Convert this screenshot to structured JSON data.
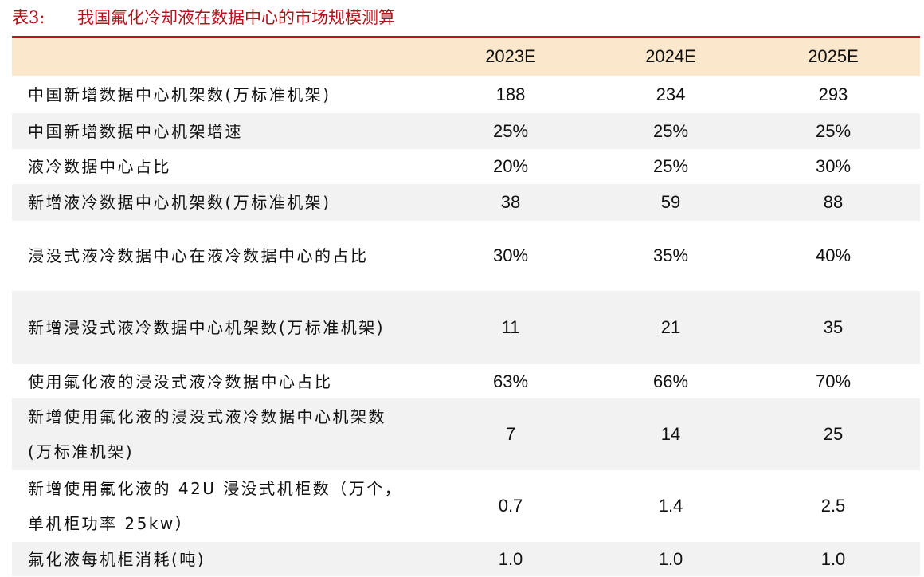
{
  "header": {
    "label": "表3:",
    "title": "我国氟化冷却液在数据中心的市场规模测算"
  },
  "table": {
    "columns": [
      "2023E",
      "2024E",
      "2025E"
    ],
    "rows": [
      [
        "中国新增数据中心机架数(万标准机架)",
        "188",
        "234",
        "293"
      ],
      [
        "中国新增数据中心机架增速",
        "25%",
        "25%",
        "25%"
      ],
      [
        "液冷数据中心占比",
        "20%",
        "25%",
        "30%"
      ],
      [
        "新增液冷数据中心机架数(万标准机架)",
        "38",
        "59",
        "88"
      ],
      [
        "浸没式液冷数据中心在液冷数据中心的占比",
        "30%",
        "35%",
        "40%"
      ],
      [
        "新增浸没式液冷数据中心机架数(万标准机架)",
        "11",
        "21",
        "35"
      ],
      [
        "使用氟化液的浸没式液冷数据中心占比",
        "63%",
        "66%",
        "70%"
      ],
      [
        "新增使用氟化液的浸没式液冷数据中心机架数(万标准机架)",
        "7",
        "14",
        "25"
      ],
      [
        "新增使用氟化液的 42U 浸没式机柜数（万个，单机柜功率 25kw）",
        "0.7",
        "1.4",
        "2.5"
      ],
      [
        "氟化液每机柜消耗(吨)",
        "1.0",
        "1.0",
        "1.0"
      ]
    ]
  }
}
